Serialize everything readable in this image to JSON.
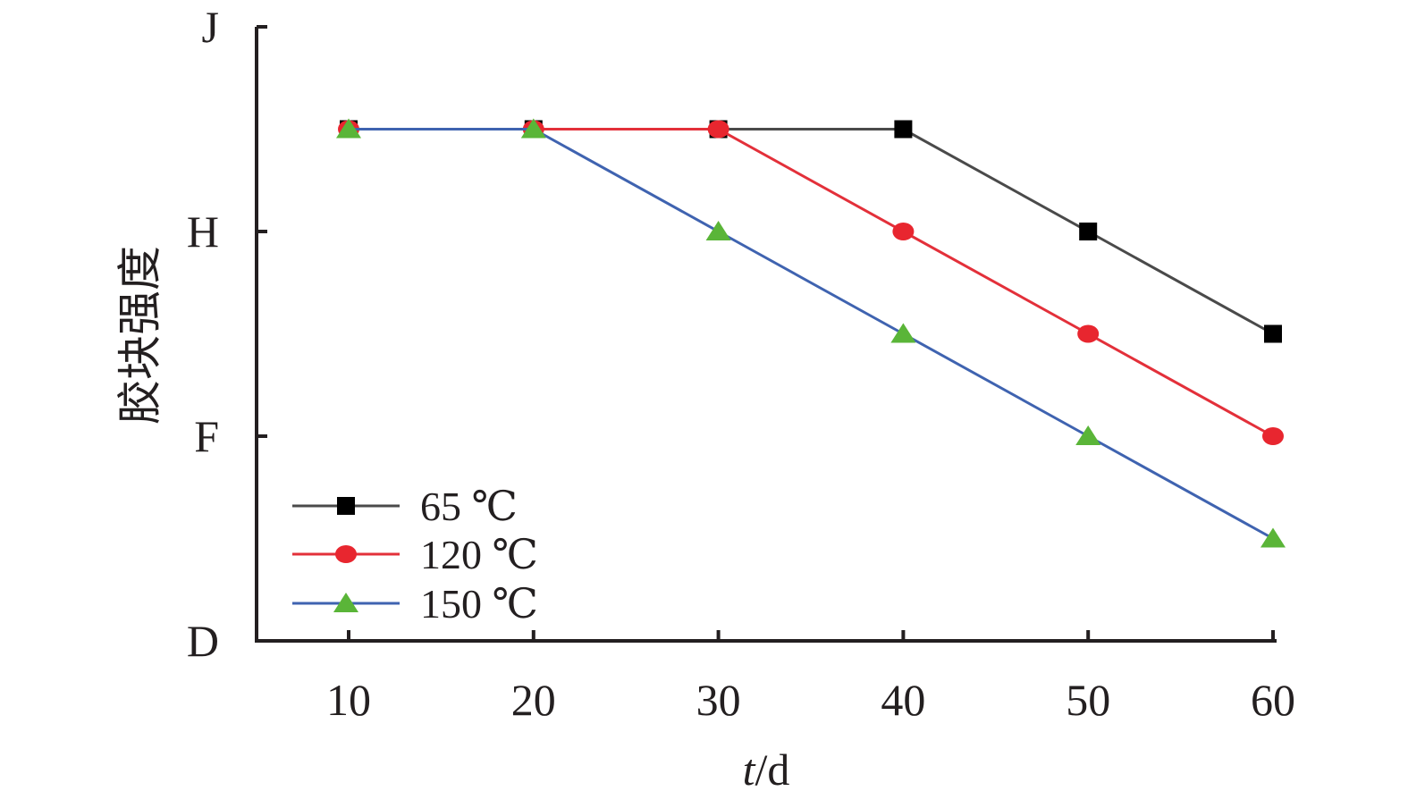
{
  "chart_data": {
    "type": "line",
    "title": "",
    "xlabel_italic": "t",
    "xlabel_unit": "/d",
    "ylabel": "胶块强度",
    "x": [
      10,
      20,
      30,
      40,
      50,
      60
    ],
    "x_ticks": [
      "10",
      "20",
      "30",
      "40",
      "50",
      "60"
    ],
    "y_ticks": [
      "D",
      "F",
      "H",
      "J"
    ],
    "y_scale_note": "categorical grades D<F<H<J; values given in half-grade steps (0=D, 1=F, 2=H, 3=J)",
    "ylim": [
      0,
      3
    ],
    "xlim": [
      5,
      60
    ],
    "grid": false,
    "legend_position": "bottom-left",
    "series": [
      {
        "name": "65 ℃",
        "values": [
          2.5,
          2.5,
          2.5,
          2.5,
          2.0,
          1.5
        ],
        "color": "#4a4a4a",
        "marker": "square",
        "marker_color": "#000000"
      },
      {
        "name": "120 ℃",
        "values": [
          2.5,
          2.5,
          2.5,
          2.0,
          1.5,
          1.0
        ],
        "color": "#e3303a",
        "marker": "circle",
        "marker_color": "#e8262f"
      },
      {
        "name": "150 ℃",
        "values": [
          2.5,
          2.5,
          2.0,
          1.5,
          1.0,
          0.5
        ],
        "color": "#3f63b0",
        "marker": "triangle",
        "marker_color": "#5ab538"
      }
    ]
  }
}
